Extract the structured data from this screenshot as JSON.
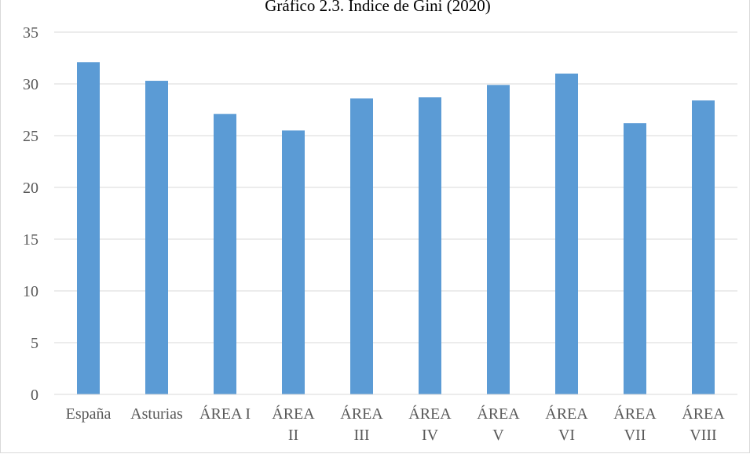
{
  "chart_data": {
    "type": "bar",
    "title": "Gráfico 2.3. Índice de Gini (2020)",
    "xlabel": "",
    "ylabel": "",
    "categories": [
      [
        "España"
      ],
      [
        "Asturias"
      ],
      [
        "ÁREA I"
      ],
      [
        "ÁREA",
        "II"
      ],
      [
        "ÁREA",
        "III"
      ],
      [
        "ÁREA",
        "IV"
      ],
      [
        "ÁREA",
        "V"
      ],
      [
        "ÁREA",
        "VI"
      ],
      [
        "ÁREA",
        "VII"
      ],
      [
        "ÁREA",
        "VIII"
      ]
    ],
    "values": [
      32.1,
      30.3,
      27.1,
      25.5,
      28.6,
      28.7,
      29.9,
      31.0,
      26.2,
      28.4
    ],
    "ylim": [
      0,
      35
    ],
    "yticks": [
      0,
      5,
      10,
      15,
      20,
      25,
      30,
      35
    ],
    "grid": true,
    "legend": "none",
    "bar_color": "#5b9bd5",
    "grid_color": "#d9d9d9",
    "label_color": "#595959"
  }
}
